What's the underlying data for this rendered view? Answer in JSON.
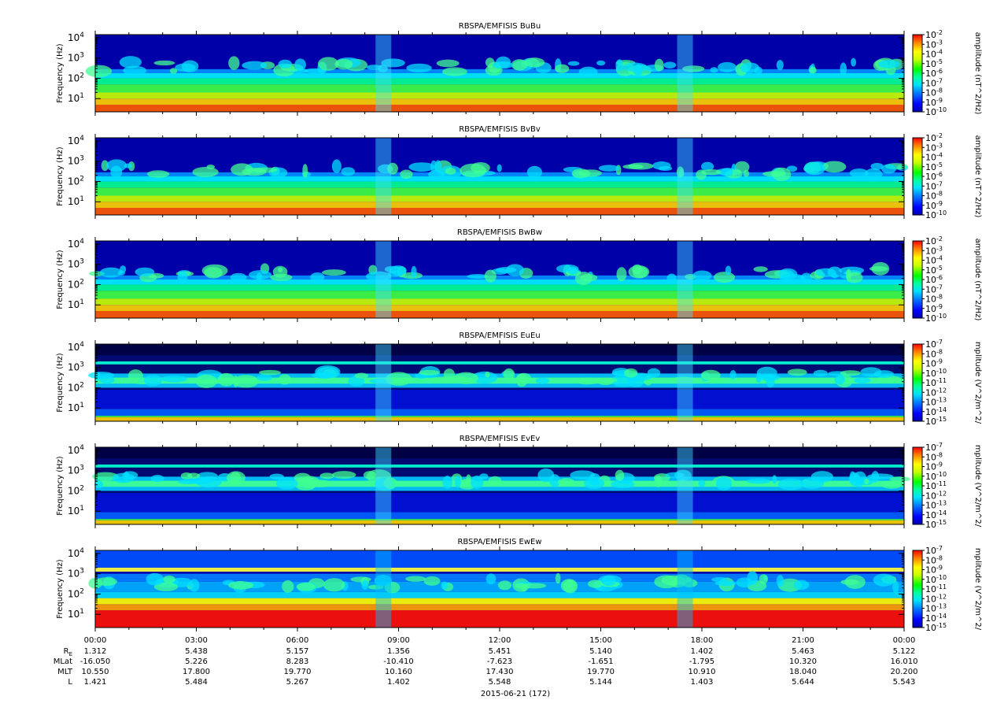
{
  "chart_data": {
    "type": "heatmap",
    "x_ticks": [
      "00:00",
      "03:00",
      "06:00",
      "09:00",
      "12:00",
      "15:00",
      "18:00",
      "21:00",
      "00:00"
    ],
    "xlim_hours": [
      0,
      24
    ],
    "date_label": "2015-06-21 (172)",
    "ephemeris": [
      {
        "label_main": "R",
        "label_sub": "E",
        "values": [
          "1.312",
          "5.438",
          "5.157",
          "1.356",
          "5.451",
          "5.140",
          "1.402",
          "5.463",
          "5.122"
        ]
      },
      {
        "label_main": "MLat",
        "label_sub": "",
        "values": [
          "-16.050",
          "5.226",
          "8.283",
          "-10.410",
          "-7.623",
          "-1.651",
          "-1.795",
          "10.320",
          "16.010"
        ]
      },
      {
        "label_main": "MLT",
        "label_sub": "",
        "values": [
          "10.550",
          "17.800",
          "19.770",
          "10.160",
          "17.430",
          "19.770",
          "10.910",
          "18.040",
          "20.200"
        ]
      },
      {
        "label_main": "L",
        "label_sub": "",
        "values": [
          "1.421",
          "5.484",
          "5.267",
          "1.402",
          "5.548",
          "5.144",
          "1.403",
          "5.644",
          "5.543"
        ]
      }
    ],
    "ylabel": "Frequency (Hz)",
    "y_scale": "log",
    "y_ticks": [
      {
        "base": "10",
        "exp": "1",
        "log": 1
      },
      {
        "base": "10",
        "exp": "2",
        "log": 2
      },
      {
        "base": "10",
        "exp": "3",
        "log": 3
      },
      {
        "base": "10",
        "exp": "4",
        "log": 4
      }
    ],
    "panels": [
      {
        "title": "RBSPA/EMFISIS  BuBu",
        "component": "B",
        "colorbar_label": "amplitude (nT^2/Hz)",
        "colorbar_exponents": [
          -2,
          -3,
          -4,
          -5,
          -6,
          -7,
          -8,
          -9,
          -10
        ],
        "colorbar_range_log": [
          -10,
          -2
        ]
      },
      {
        "title": "RBSPA/EMFISIS  BvBv",
        "component": "B",
        "colorbar_label": "amplitude (nT^2/Hz)",
        "colorbar_exponents": [
          -2,
          -3,
          -4,
          -5,
          -6,
          -7,
          -8,
          -9,
          -10
        ],
        "colorbar_range_log": [
          -10,
          -2
        ]
      },
      {
        "title": "RBSPA/EMFISIS  BwBw",
        "component": "B",
        "colorbar_label": "amplitude (nT^2/Hz)",
        "colorbar_exponents": [
          -2,
          -3,
          -4,
          -5,
          -6,
          -7,
          -8,
          -9,
          -10
        ],
        "colorbar_range_log": [
          -10,
          -2
        ]
      },
      {
        "title": "RBSPA/EMFISIS  EuEu",
        "component": "E",
        "colorbar_label": "mplitude (V^2/m^2/",
        "colorbar_exponents": [
          -7,
          -8,
          -9,
          -10,
          -11,
          -12,
          -13,
          -14,
          -15
        ],
        "colorbar_range_log": [
          -15,
          -7
        ]
      },
      {
        "title": "RBSPA/EMFISIS  EvEv",
        "component": "E",
        "colorbar_label": "mplitude (V^2/m^2/",
        "colorbar_exponents": [
          -7,
          -8,
          -9,
          -10,
          -11,
          -12,
          -13,
          -14,
          -15
        ],
        "colorbar_range_log": [
          -15,
          -7
        ]
      },
      {
        "title": "RBSPA/EMFISIS  EwEw",
        "component": "Ew",
        "colorbar_label": "mplitude (V^2/m^2/",
        "colorbar_exponents": [
          -7,
          -8,
          -9,
          -10,
          -11,
          -12,
          -13,
          -14,
          -15
        ],
        "colorbar_range_log": [
          -15,
          -7
        ]
      }
    ]
  }
}
